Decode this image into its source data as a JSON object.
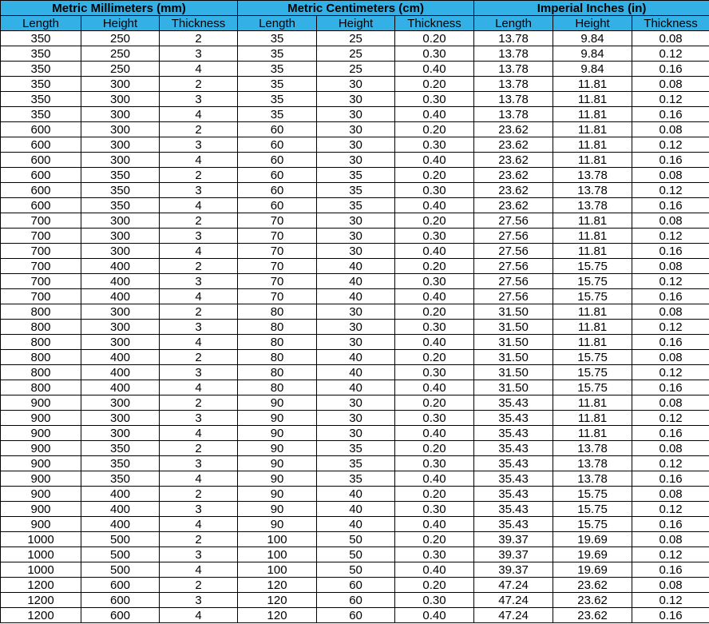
{
  "table": {
    "groups": [
      "Metric Millimeters (mm)",
      "Metric Centimeters (cm)",
      "Imperial Inches (in)"
    ],
    "columns": [
      "Length",
      "Height",
      "Thickness",
      "Length",
      "Height",
      "Thickness",
      "Length",
      "Height",
      "Thickness"
    ],
    "rows": [
      [
        "350",
        "250",
        "2",
        "35",
        "25",
        "0.20",
        "13.78",
        "9.84",
        "0.08"
      ],
      [
        "350",
        "250",
        "3",
        "35",
        "25",
        "0.30",
        "13.78",
        "9.84",
        "0.12"
      ],
      [
        "350",
        "250",
        "4",
        "35",
        "25",
        "0.40",
        "13.78",
        "9.84",
        "0.16"
      ],
      [
        "350",
        "300",
        "2",
        "35",
        "30",
        "0.20",
        "13.78",
        "11.81",
        "0.08"
      ],
      [
        "350",
        "300",
        "3",
        "35",
        "30",
        "0.30",
        "13.78",
        "11.81",
        "0.12"
      ],
      [
        "350",
        "300",
        "4",
        "35",
        "30",
        "0.40",
        "13.78",
        "11.81",
        "0.16"
      ],
      [
        "600",
        "300",
        "2",
        "60",
        "30",
        "0.20",
        "23.62",
        "11.81",
        "0.08"
      ],
      [
        "600",
        "300",
        "3",
        "60",
        "30",
        "0.30",
        "23.62",
        "11.81",
        "0.12"
      ],
      [
        "600",
        "300",
        "4",
        "60",
        "30",
        "0.40",
        "23.62",
        "11.81",
        "0.16"
      ],
      [
        "600",
        "350",
        "2",
        "60",
        "35",
        "0.20",
        "23.62",
        "13.78",
        "0.08"
      ],
      [
        "600",
        "350",
        "3",
        "60",
        "35",
        "0.30",
        "23.62",
        "13.78",
        "0.12"
      ],
      [
        "600",
        "350",
        "4",
        "60",
        "35",
        "0.40",
        "23.62",
        "13.78",
        "0.16"
      ],
      [
        "700",
        "300",
        "2",
        "70",
        "30",
        "0.20",
        "27.56",
        "11.81",
        "0.08"
      ],
      [
        "700",
        "300",
        "3",
        "70",
        "30",
        "0.30",
        "27.56",
        "11.81",
        "0.12"
      ],
      [
        "700",
        "300",
        "4",
        "70",
        "30",
        "0.40",
        "27.56",
        "11.81",
        "0.16"
      ],
      [
        "700",
        "400",
        "2",
        "70",
        "40",
        "0.20",
        "27.56",
        "15.75",
        "0.08"
      ],
      [
        "700",
        "400",
        "3",
        "70",
        "40",
        "0.30",
        "27.56",
        "15.75",
        "0.12"
      ],
      [
        "700",
        "400",
        "4",
        "70",
        "40",
        "0.40",
        "27.56",
        "15.75",
        "0.16"
      ],
      [
        "800",
        "300",
        "2",
        "80",
        "30",
        "0.20",
        "31.50",
        "11.81",
        "0.08"
      ],
      [
        "800",
        "300",
        "3",
        "80",
        "30",
        "0.30",
        "31.50",
        "11.81",
        "0.12"
      ],
      [
        "800",
        "300",
        "4",
        "80",
        "30",
        "0.40",
        "31.50",
        "11.81",
        "0.16"
      ],
      [
        "800",
        "400",
        "2",
        "80",
        "40",
        "0.20",
        "31.50",
        "15.75",
        "0.08"
      ],
      [
        "800",
        "400",
        "3",
        "80",
        "40",
        "0.30",
        "31.50",
        "15.75",
        "0.12"
      ],
      [
        "800",
        "400",
        "4",
        "80",
        "40",
        "0.40",
        "31.50",
        "15.75",
        "0.16"
      ],
      [
        "900",
        "300",
        "2",
        "90",
        "30",
        "0.20",
        "35.43",
        "11.81",
        "0.08"
      ],
      [
        "900",
        "300",
        "3",
        "90",
        "30",
        "0.30",
        "35.43",
        "11.81",
        "0.12"
      ],
      [
        "900",
        "300",
        "4",
        "90",
        "30",
        "0.40",
        "35.43",
        "11.81",
        "0.16"
      ],
      [
        "900",
        "350",
        "2",
        "90",
        "35",
        "0.20",
        "35.43",
        "13.78",
        "0.08"
      ],
      [
        "900",
        "350",
        "3",
        "90",
        "35",
        "0.30",
        "35.43",
        "13.78",
        "0.12"
      ],
      [
        "900",
        "350",
        "4",
        "90",
        "35",
        "0.40",
        "35.43",
        "13.78",
        "0.16"
      ],
      [
        "900",
        "400",
        "2",
        "90",
        "40",
        "0.20",
        "35.43",
        "15.75",
        "0.08"
      ],
      [
        "900",
        "400",
        "3",
        "90",
        "40",
        "0.30",
        "35.43",
        "15.75",
        "0.12"
      ],
      [
        "900",
        "400",
        "4",
        "90",
        "40",
        "0.40",
        "35.43",
        "15.75",
        "0.16"
      ],
      [
        "1000",
        "500",
        "2",
        "100",
        "50",
        "0.20",
        "39.37",
        "19.69",
        "0.08"
      ],
      [
        "1000",
        "500",
        "3",
        "100",
        "50",
        "0.30",
        "39.37",
        "19.69",
        "0.12"
      ],
      [
        "1000",
        "500",
        "4",
        "100",
        "50",
        "0.40",
        "39.37",
        "19.69",
        "0.16"
      ],
      [
        "1200",
        "600",
        "2",
        "120",
        "60",
        "0.20",
        "47.24",
        "23.62",
        "0.08"
      ],
      [
        "1200",
        "600",
        "3",
        "120",
        "60",
        "0.30",
        "47.24",
        "23.62",
        "0.12"
      ],
      [
        "1200",
        "600",
        "4",
        "120",
        "60",
        "0.40",
        "47.24",
        "23.62",
        "0.16"
      ]
    ]
  }
}
